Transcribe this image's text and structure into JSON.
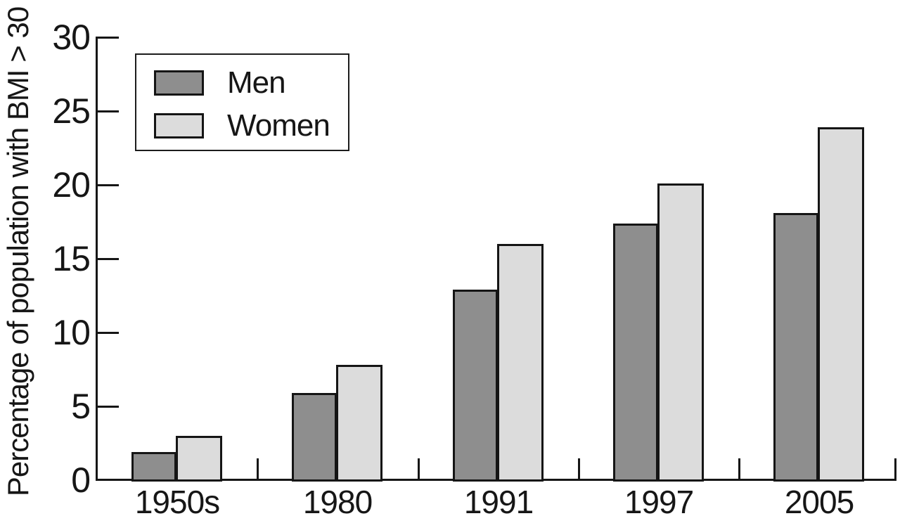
{
  "chart_data": {
    "type": "bar",
    "title": "",
    "xlabel": "",
    "ylabel": "Percentage of population with BMI > 30",
    "categories": [
      "1950s",
      "1980",
      "1991",
      "1997",
      "2005"
    ],
    "series": [
      {
        "name": "Men",
        "color": "#8e8e8e",
        "values": [
          1.9,
          5.9,
          12.9,
          17.4,
          18.1
        ]
      },
      {
        "name": "Women",
        "color": "#dcdcdc",
        "values": [
          3.0,
          7.8,
          16.0,
          20.1,
          23.9
        ]
      }
    ],
    "ylim": [
      0,
      30
    ],
    "yticks": [
      0,
      5,
      10,
      15,
      20,
      25,
      30
    ],
    "grid": false,
    "legend_position": "top-left",
    "ink_color": "#161616",
    "background_color": "#ffffff"
  },
  "legend": {
    "items": [
      {
        "label": "Men"
      },
      {
        "label": "Women"
      }
    ]
  }
}
